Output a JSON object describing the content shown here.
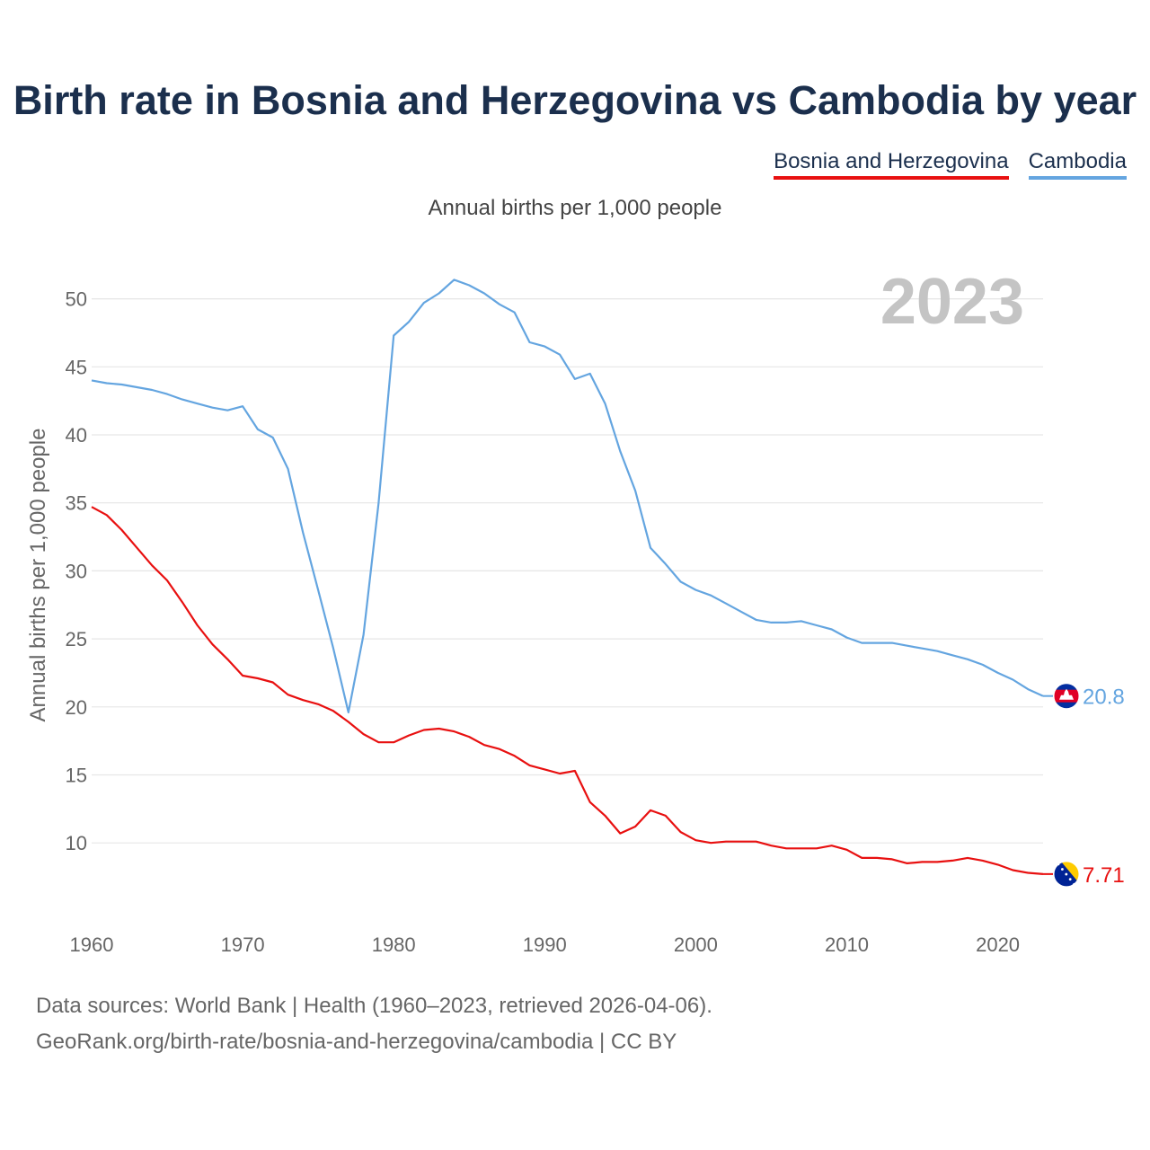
{
  "title": "Birth rate in Bosnia and Herzegovina vs Cambodia by year",
  "legend": {
    "bosnia_label": "Bosnia and Herzegovina",
    "cambodia_label": "Cambodia"
  },
  "subtitle": "Annual births per 1,000 people",
  "year_watermark": "2023",
  "source_line1": "Data sources: World Bank | Health (1960–2023, retrieved 2026-04-06).",
  "source_line2": "GeoRank.org/birth-rate/bosnia-and-herzegovina/cambodia | CC BY",
  "colors": {
    "bosnia": "#e81010",
    "cambodia": "#64a5e0",
    "grid": "#e6e6e6",
    "tick": "#666666"
  },
  "icons": {
    "bosnia_flag": "bosnia-flag-icon",
    "cambodia_flag": "cambodia-flag-icon"
  },
  "chart_data": {
    "type": "line",
    "title": "Birth rate in Bosnia and Herzegovina vs Cambodia by year",
    "subtitle": "Annual births per 1,000 people",
    "xlabel": "",
    "ylabel": "Annual births per 1,000 people",
    "xlim": [
      1960,
      2023
    ],
    "ylim": [
      5,
      53
    ],
    "xticks": [
      1960,
      1970,
      1980,
      1990,
      2000,
      2010,
      2020
    ],
    "yticks": [
      10,
      15,
      20,
      25,
      30,
      35,
      40,
      45,
      50
    ],
    "grid": true,
    "legend_position": "top-right",
    "x": [
      1960,
      1961,
      1962,
      1963,
      1964,
      1965,
      1966,
      1967,
      1968,
      1969,
      1970,
      1971,
      1972,
      1973,
      1974,
      1975,
      1976,
      1977,
      1978,
      1979,
      1980,
      1981,
      1982,
      1983,
      1984,
      1985,
      1986,
      1987,
      1988,
      1989,
      1990,
      1991,
      1992,
      1993,
      1994,
      1995,
      1996,
      1997,
      1998,
      1999,
      2000,
      2001,
      2002,
      2003,
      2004,
      2005,
      2006,
      2007,
      2008,
      2009,
      2010,
      2011,
      2012,
      2013,
      2014,
      2015,
      2016,
      2017,
      2018,
      2019,
      2020,
      2021,
      2022,
      2023
    ],
    "series": [
      {
        "name": "Bosnia and Herzegovina",
        "color": "#e81010",
        "last_value_label": "7.71",
        "values": [
          34.7,
          34.1,
          33.0,
          31.7,
          30.4,
          29.3,
          27.7,
          26.0,
          24.6,
          23.5,
          22.3,
          22.1,
          21.8,
          20.9,
          20.5,
          20.2,
          19.7,
          18.9,
          18.0,
          17.4,
          17.4,
          17.9,
          18.3,
          18.4,
          18.2,
          17.8,
          17.2,
          16.9,
          16.4,
          15.7,
          15.4,
          15.1,
          15.3,
          13.0,
          12.0,
          10.7,
          11.2,
          12.4,
          12.0,
          10.8,
          10.2,
          10.0,
          10.1,
          10.1,
          10.1,
          9.8,
          9.6,
          9.6,
          9.6,
          9.8,
          9.5,
          8.9,
          8.9,
          8.8,
          8.5,
          8.6,
          8.6,
          8.7,
          8.9,
          8.7,
          8.4,
          8.0,
          7.8,
          7.71
        ]
      },
      {
        "name": "Cambodia",
        "color": "#64a5e0",
        "last_value_label": "20.8",
        "values": [
          44.0,
          43.8,
          43.7,
          43.5,
          43.3,
          43.0,
          42.6,
          42.3,
          42.0,
          41.8,
          42.1,
          40.4,
          39.8,
          37.5,
          32.8,
          28.6,
          24.3,
          19.6,
          25.3,
          35.0,
          47.3,
          48.3,
          49.7,
          50.4,
          51.4,
          51.0,
          50.4,
          49.6,
          49.0,
          46.8,
          46.5,
          45.9,
          44.1,
          44.5,
          42.3,
          38.8,
          35.9,
          31.7,
          30.5,
          29.2,
          28.6,
          28.2,
          27.6,
          27.0,
          26.4,
          26.2,
          26.2,
          26.3,
          26.0,
          25.7,
          25.1,
          24.7,
          24.7,
          24.7,
          24.5,
          24.3,
          24.1,
          23.8,
          23.5,
          23.1,
          22.5,
          22.0,
          21.3,
          20.8
        ]
      }
    ]
  }
}
